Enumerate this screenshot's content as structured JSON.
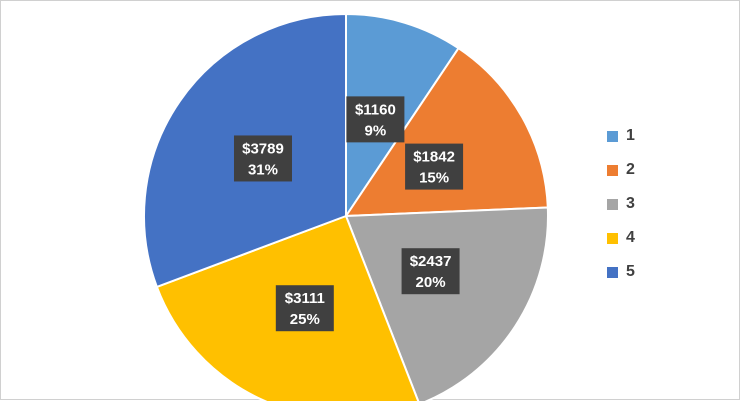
{
  "chart_data": {
    "type": "pie",
    "categories": [
      "1",
      "2",
      "3",
      "4",
      "5"
    ],
    "values": [
      1160,
      1842,
      2437,
      3111,
      3789
    ],
    "value_labels": [
      "$1160",
      "$1842",
      "$2437",
      "$3111",
      "$3789"
    ],
    "percent_labels": [
      "9%",
      "15%",
      "20%",
      "25%",
      "31%"
    ],
    "colors": [
      "#5B9BD5",
      "#ED7D31",
      "#A5A5A5",
      "#FFC000",
      "#4472C4"
    ],
    "start_angle_deg": 0,
    "direction": "clockwise",
    "legend_position": "right"
  }
}
